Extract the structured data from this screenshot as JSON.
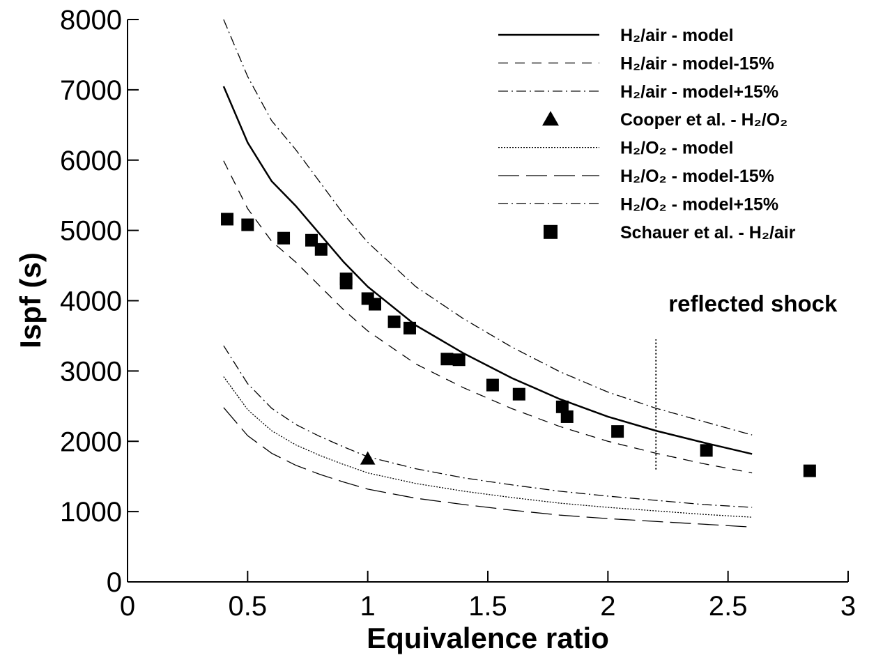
{
  "chart_data": {
    "type": "line",
    "x_label": "Equivalence ratio",
    "y_label": "Ispf (s)",
    "xlim": [
      0,
      3
    ],
    "ylim": [
      0,
      8000
    ],
    "xticks": [
      0,
      0.5,
      1,
      1.5,
      2,
      2.5,
      3
    ],
    "yticks": [
      0,
      1000,
      2000,
      3000,
      4000,
      5000,
      6000,
      7000,
      8000
    ],
    "x": [
      0.4,
      0.5,
      0.6,
      0.7,
      0.8,
      0.9,
      1.0,
      1.2,
      1.4,
      1.6,
      1.8,
      2.0,
      2.2,
      2.4,
      2.6
    ],
    "legend": "upper right",
    "series": [
      {
        "name": "H₂/air - model",
        "kind": "line",
        "style": "solid",
        "color": "#000000",
        "values": [
          7050,
          6250,
          5700,
          5350,
          4950,
          4550,
          4200,
          3650,
          3250,
          2900,
          2600,
          2350,
          2150,
          1980,
          1820
        ]
      },
      {
        "name": "H₂/air - model-15%",
        "kind": "line",
        "style": "dashed",
        "color": "#000000",
        "values": [
          5990,
          5310,
          4845,
          4550,
          4210,
          3870,
          3570,
          3100,
          2760,
          2465,
          2210,
          2000,
          1830,
          1680,
          1550
        ]
      },
      {
        "name": "H₂/air - model+15%",
        "kind": "line",
        "style": "dashdot",
        "color": "#000000",
        "values": [
          8000,
          7190,
          6560,
          6150,
          5690,
          5230,
          4830,
          4200,
          3740,
          3340,
          2990,
          2700,
          2470,
          2280,
          2090
        ]
      },
      {
        "name": "Cooper et al. - H₂/O₂",
        "kind": "scatter",
        "marker": "triangle",
        "color": "#000000",
        "x": [
          1.0
        ],
        "values": [
          1750
        ]
      },
      {
        "name": "H₂/O₂ - model",
        "kind": "line",
        "style": "dotted",
        "color": "#000000",
        "values": [
          2920,
          2450,
          2150,
          1950,
          1800,
          1670,
          1550,
          1400,
          1290,
          1200,
          1120,
          1060,
          1010,
          960,
          920
        ]
      },
      {
        "name": "H₂/O₂ - model-15%",
        "kind": "line",
        "style": "longdash",
        "color": "#000000",
        "values": [
          2480,
          2080,
          1830,
          1660,
          1530,
          1420,
          1320,
          1190,
          1100,
          1020,
          950,
          900,
          860,
          820,
          780
        ]
      },
      {
        "name": "H₂/O₂ - model+15%",
        "kind": "line",
        "style": "dashdot",
        "color": "#000000",
        "values": [
          3360,
          2820,
          2470,
          2240,
          2070,
          1920,
          1780,
          1610,
          1480,
          1380,
          1290,
          1220,
          1160,
          1100,
          1060
        ]
      },
      {
        "name": "Schauer et al. - H₂/air",
        "kind": "scatter",
        "marker": "square",
        "color": "#000000",
        "x": [
          0.415,
          0.5,
          0.65,
          0.766,
          0.806,
          0.91,
          0.91,
          1.0,
          1.03,
          1.11,
          1.175,
          1.33,
          1.38,
          1.52,
          1.63,
          1.81,
          1.83,
          2.04,
          2.41,
          2.84
        ],
        "values": [
          5160,
          5080,
          4890,
          4860,
          4730,
          4310,
          4250,
          4030,
          3950,
          3700,
          3610,
          3170,
          3160,
          2800,
          2670,
          2490,
          2350,
          2140,
          1870,
          1580
        ]
      }
    ],
    "annotations": [
      {
        "text": "reflected shock",
        "x": 2.2,
        "y": [
          1600,
          3450
        ]
      }
    ]
  }
}
